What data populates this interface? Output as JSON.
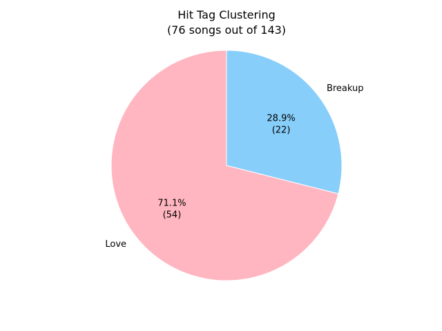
{
  "chart_data": {
    "type": "pie",
    "title": "Hit Tag Clustering",
    "subtitle": "(76 songs out of 143)",
    "legend": "none",
    "slices": [
      {
        "label": "Breakup",
        "value": 22,
        "percent": "28.9%",
        "count_label": "(22)",
        "color": "#87CEFA"
      },
      {
        "label": "Love",
        "value": 54,
        "percent": "71.1%",
        "count_label": "(54)",
        "color": "#FFB6C1"
      }
    ]
  }
}
